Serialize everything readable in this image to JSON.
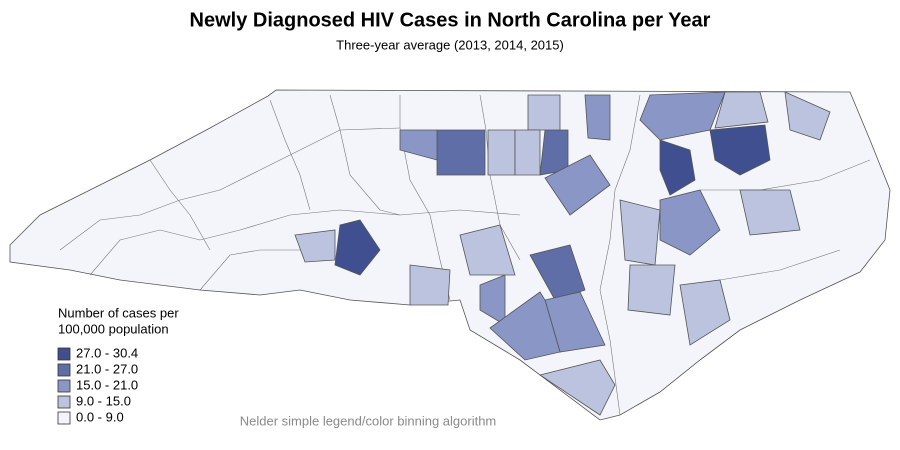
{
  "title": "Newly Diagnosed HIV Cases in North Carolina per Year",
  "subtitle": "Three-year average (2013, 2014, 2015)",
  "legend": {
    "title": [
      "Number of cases per",
      "100,000 population"
    ],
    "items": [
      {
        "label": "27.0 - 30.4",
        "color": "#3f4f8f"
      },
      {
        "label": "21.0 - 27.0",
        "color": "#5f6ea7"
      },
      {
        "label": "15.0 - 21.0",
        "color": "#8a96c5"
      },
      {
        "label": "9.0 - 15.0",
        "color": "#bcc3df"
      },
      {
        "label": "0.0 - 9.0",
        "color": "#f3f5fb"
      }
    ]
  },
  "footnote": "Nelder simple legend/color binning algorithm"
}
